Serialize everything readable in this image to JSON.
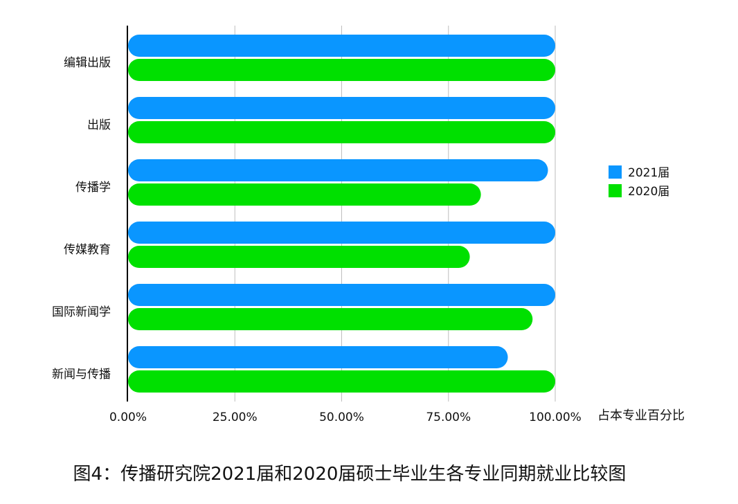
{
  "caption": "图4：传播研究院2021届和2020届硕士毕业生各专业同期就业比较图",
  "chart_data": {
    "type": "bar",
    "orientation": "horizontal",
    "categories": [
      "编辑出版",
      "出版",
      "传播学",
      "传媒教育",
      "国际新闻学",
      "新闻与传播"
    ],
    "series": [
      {
        "name": "2021届",
        "color": "#0a96ff",
        "values": [
          100,
          100,
          98.3,
          100,
          100,
          88.9
        ]
      },
      {
        "name": "2020届",
        "color": "#00e000",
        "values": [
          100,
          100,
          82.6,
          80.0,
          94.7,
          100
        ]
      }
    ],
    "xlim": [
      0,
      100
    ],
    "x_ticks": [
      "0.00%",
      "25.00%",
      "50.00%",
      "75.00%",
      "100.00%"
    ],
    "xlabel": "占本专业百分比",
    "ylabel": "",
    "grid": "vertical",
    "legend_position": "right"
  }
}
